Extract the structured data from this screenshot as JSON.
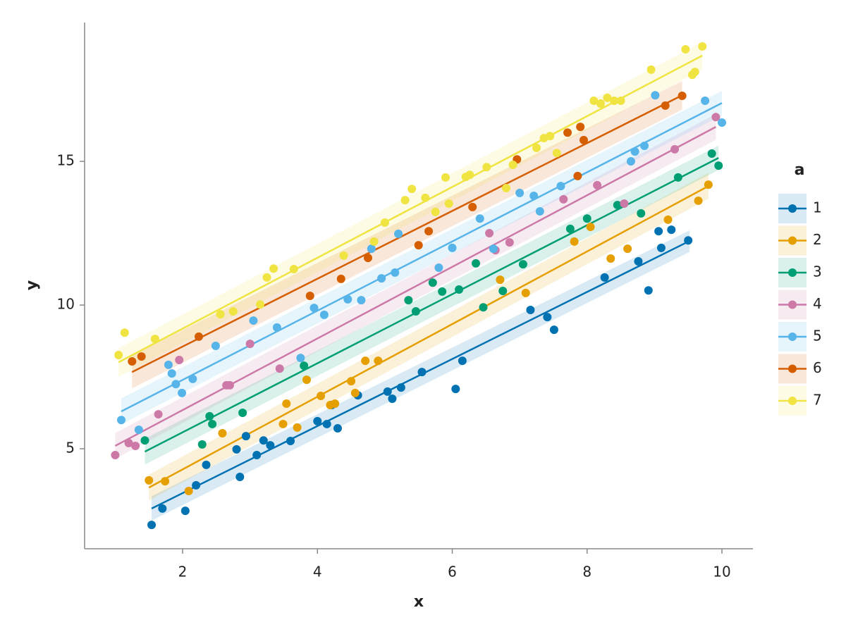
{
  "chart_data": {
    "type": "scatter",
    "x_label": "x",
    "y_label": "y",
    "legend_title": "a",
    "legend": "right",
    "xlim": [
      0.546,
      10.46
    ],
    "ylim": [
      1.52,
      19.83
    ],
    "xticks": [
      2,
      4,
      6,
      8,
      10
    ],
    "yticks": [
      5,
      10,
      15
    ],
    "grid": false,
    "series": [
      {
        "name": "1",
        "color": "#0072b2",
        "x": [
          1.54,
          1.7,
          2.04,
          2.2,
          2.35,
          2.8,
          2.85,
          2.94,
          3.1,
          3.2,
          3.3,
          3.6,
          4.0,
          4.14,
          4.21,
          4.3,
          4.6,
          5.04,
          5.11,
          5.24,
          5.55,
          6.05,
          6.15,
          7.16,
          7.41,
          7.51,
          8.26,
          8.76,
          8.91,
          9.06,
          9.1,
          9.25,
          9.5
        ],
        "values": [
          2.35,
          2.92,
          2.84,
          3.73,
          4.44,
          4.98,
          4.02,
          5.44,
          4.78,
          5.29,
          5.12,
          5.27,
          5.96,
          5.86,
          6.52,
          5.71,
          6.86,
          6.99,
          6.74,
          7.13,
          7.67,
          7.08,
          8.06,
          9.83,
          9.58,
          9.14,
          10.96,
          11.52,
          10.51,
          12.57,
          11.99,
          12.62,
          12.25
        ],
        "fit": {
          "x": [
            1.54,
            9.52
          ],
          "y": [
            2.92,
            12.23
          ]
        },
        "band_lower": [
          2.5,
          11.85
        ],
        "band_upper": [
          3.35,
          12.6
        ]
      },
      {
        "name": "2",
        "color": "#e69f00",
        "x": [
          1.5,
          1.74,
          2.09,
          2.59,
          3.49,
          3.54,
          3.7,
          3.84,
          4.05,
          4.19,
          4.26,
          4.5,
          4.56,
          4.71,
          4.9,
          6.71,
          7.09,
          7.81,
          8.05,
          8.35,
          8.6,
          9.2,
          9.65,
          9.8
        ],
        "values": [
          3.9,
          3.87,
          3.53,
          5.54,
          5.86,
          6.57,
          5.74,
          7.4,
          6.84,
          6.52,
          6.57,
          7.35,
          6.94,
          8.06,
          8.06,
          10.88,
          10.42,
          12.21,
          12.72,
          11.62,
          11.96,
          12.97,
          13.63,
          14.19
        ],
        "fit": {
          "x": [
            1.5,
            9.8
          ],
          "y": [
            3.65,
            14.14
          ]
        },
        "band_lower": [
          3.2,
          13.7
        ],
        "band_upper": [
          4.1,
          14.6
        ]
      },
      {
        "name": "3",
        "color": "#009e73",
        "x": [
          1.44,
          2.29,
          2.4,
          2.44,
          2.89,
          3.8,
          5.35,
          5.46,
          5.71,
          5.85,
          6.1,
          6.35,
          6.46,
          6.75,
          7.05,
          7.75,
          8.0,
          8.45,
          8.8,
          9.35,
          9.85,
          9.95
        ],
        "values": [
          5.29,
          5.15,
          6.13,
          5.86,
          6.25,
          7.89,
          10.17,
          9.78,
          10.78,
          10.47,
          10.54,
          11.45,
          9.92,
          10.49,
          11.42,
          12.65,
          13.01,
          13.48,
          13.19,
          14.44,
          15.27,
          14.85
        ],
        "fit": {
          "x": [
            1.44,
            9.95
          ],
          "y": [
            4.9,
            15.12
          ]
        },
        "band_lower": [
          4.45,
          14.7
        ],
        "band_upper": [
          5.35,
          15.55
        ]
      },
      {
        "name": "4",
        "color": "#cc79a7",
        "x": [
          1.0,
          1.2,
          1.3,
          1.64,
          1.95,
          2.65,
          2.7,
          3.0,
          3.44,
          6.55,
          6.64,
          6.85,
          7.65,
          8.15,
          8.55,
          9.3,
          9.91
        ],
        "values": [
          4.78,
          5.2,
          5.1,
          6.2,
          8.09,
          7.21,
          7.21,
          8.65,
          7.79,
          12.5,
          11.91,
          12.18,
          13.68,
          14.17,
          13.53,
          15.42,
          16.54
        ],
        "fit": {
          "x": [
            1.0,
            9.91
          ],
          "y": [
            5.1,
            16.2
          ]
        },
        "band_lower": [
          4.65,
          15.75
        ],
        "band_upper": [
          5.55,
          16.65
        ]
      },
      {
        "name": "5",
        "color": "#56b4e9",
        "x": [
          1.09,
          1.35,
          1.79,
          1.84,
          1.9,
          1.99,
          2.15,
          2.49,
          3.05,
          3.4,
          3.75,
          3.95,
          4.1,
          4.45,
          4.65,
          4.8,
          4.95,
          5.15,
          5.2,
          5.8,
          6.0,
          6.41,
          6.61,
          7.0,
          7.21,
          7.3,
          7.61,
          8.65,
          8.71,
          8.85,
          9.01,
          9.75,
          10.0
        ],
        "values": [
          6.0,
          5.66,
          7.92,
          7.62,
          7.25,
          6.94,
          7.43,
          8.58,
          9.46,
          9.22,
          8.16,
          9.9,
          9.66,
          10.2,
          10.17,
          11.96,
          10.93,
          11.13,
          12.48,
          11.3,
          11.99,
          13.01,
          11.96,
          13.9,
          13.8,
          13.26,
          14.14,
          15.0,
          15.34,
          15.54,
          17.3,
          17.11,
          16.35
        ],
        "fit": {
          "x": [
            1.09,
            10.0
          ],
          "y": [
            6.3,
            17.03
          ]
        },
        "band_lower": [
          5.85,
          16.6
        ],
        "band_upper": [
          6.75,
          17.45
        ]
      },
      {
        "name": "6",
        "color": "#d55e00",
        "x": [
          1.25,
          1.39,
          2.24,
          3.89,
          4.35,
          4.75,
          5.5,
          5.65,
          6.3,
          6.96,
          7.71,
          7.86,
          7.9,
          7.95,
          9.16,
          9.41
        ],
        "values": [
          8.04,
          8.21,
          8.9,
          10.32,
          10.91,
          11.64,
          12.08,
          12.57,
          13.41,
          15.07,
          16.0,
          14.49,
          16.2,
          15.74,
          16.94,
          17.28
        ],
        "fit": {
          "x": [
            1.25,
            9.41
          ],
          "y": [
            7.67,
            17.3
          ]
        },
        "band_lower": [
          7.1,
          16.8
        ],
        "band_upper": [
          8.25,
          17.8
        ]
      },
      {
        "name": "7",
        "color": "#f0e442",
        "x": [
          1.05,
          1.14,
          1.59,
          2.56,
          2.75,
          3.15,
          3.25,
          3.35,
          3.65,
          4.39,
          4.84,
          5.0,
          5.3,
          5.4,
          5.6,
          5.75,
          5.9,
          5.95,
          6.2,
          6.26,
          6.51,
          6.8,
          6.9,
          7.25,
          7.36,
          7.45,
          7.55,
          8.1,
          8.2,
          8.3,
          8.4,
          8.5,
          8.95,
          9.46,
          9.56,
          9.6,
          9.71
        ],
        "values": [
          8.26,
          9.04,
          8.82,
          9.68,
          9.78,
          10.02,
          10.96,
          11.27,
          11.25,
          11.72,
          12.21,
          12.87,
          13.65,
          14.04,
          13.73,
          13.24,
          14.44,
          13.53,
          14.46,
          14.53,
          14.8,
          14.07,
          14.88,
          15.47,
          15.81,
          15.88,
          15.29,
          17.11,
          17.01,
          17.21,
          17.11,
          17.11,
          18.19,
          18.9,
          18.01,
          18.11,
          19.0
        ],
        "fit": {
          "x": [
            1.05,
            9.71
          ],
          "y": [
            8.01,
            18.68
          ]
        },
        "band_lower": [
          7.5,
          18.2
        ],
        "band_upper": [
          8.5,
          19.15
        ]
      }
    ]
  }
}
